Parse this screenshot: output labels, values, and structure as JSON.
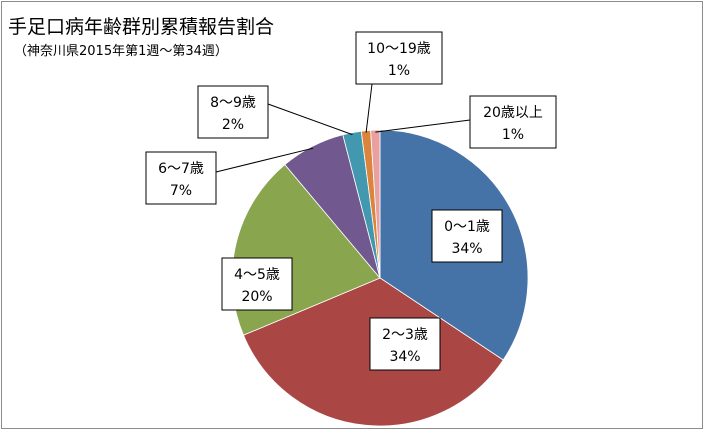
{
  "chart_data": {
    "type": "pie",
    "title": "手足口病年齢群別累積報告割合",
    "subtitle": "（神奈川県2015年第1週～第34週）",
    "categories": [
      "0～1歳",
      "2～3歳",
      "4～5歳",
      "6～7歳",
      "8～9歳",
      "10～19歳",
      "20歳以上"
    ],
    "values": [
      34,
      34,
      20,
      7,
      2,
      1,
      1
    ],
    "value_labels": [
      "34%",
      "34%",
      "20%",
      "7%",
      "2%",
      "1%",
      "1%"
    ],
    "colors": [
      "#4572a7",
      "#aa4643",
      "#89a54e",
      "#71588f",
      "#4198af",
      "#db843d",
      "#e8a0a0"
    ],
    "start_angle_deg": 0,
    "direction": "clockwise",
    "legend": "none"
  }
}
